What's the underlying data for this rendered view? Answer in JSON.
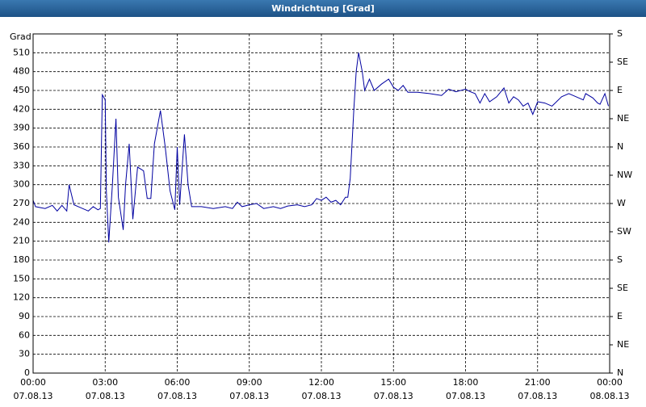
{
  "chart_data": {
    "type": "line",
    "title": "Windrichtung [Grad]",
    "y_label": "Grad",
    "color": "#0000a0",
    "grid": true,
    "xlim": [
      0,
      24
    ],
    "xticks": [
      {
        "value": 0,
        "label": "00:00",
        "date": "07.08.13"
      },
      {
        "value": 3,
        "label": "03:00",
        "date": "07.08.13"
      },
      {
        "value": 6,
        "label": "06:00",
        "date": "07.08.13"
      },
      {
        "value": 9,
        "label": "09:00",
        "date": "07.08.13"
      },
      {
        "value": 12,
        "label": "12:00",
        "date": "07.08.13"
      },
      {
        "value": 15,
        "label": "15:00",
        "date": "07.08.13"
      },
      {
        "value": 18,
        "label": "18:00",
        "date": "07.08.13"
      },
      {
        "value": 21,
        "label": "21:00",
        "date": "07.08.13"
      },
      {
        "value": 24,
        "label": "00:00",
        "date": "08.08.13"
      }
    ],
    "ylim": [
      0,
      540
    ],
    "yticks": [
      0,
      30,
      60,
      90,
      120,
      150,
      180,
      210,
      240,
      270,
      300,
      330,
      360,
      390,
      420,
      450,
      480,
      510
    ],
    "y2lim": [
      0,
      540
    ],
    "y2ticks": [
      {
        "value": 0,
        "label": "N"
      },
      {
        "value": 45,
        "label": "NE"
      },
      {
        "value": 90,
        "label": "E"
      },
      {
        "value": 135,
        "label": "SE"
      },
      {
        "value": 180,
        "label": "S"
      },
      {
        "value": 225,
        "label": "SW"
      },
      {
        "value": 270,
        "label": "W"
      },
      {
        "value": 315,
        "label": "NW"
      },
      {
        "value": 360,
        "label": "N"
      },
      {
        "value": 405,
        "label": "NE"
      },
      {
        "value": 450,
        "label": "E"
      },
      {
        "value": 495,
        "label": "SE"
      },
      {
        "value": 540,
        "label": "S"
      }
    ],
    "x": [
      0,
      0.1,
      0.5,
      0.8,
      1.0,
      1.2,
      1.4,
      1.5,
      1.7,
      2.0,
      2.3,
      2.5,
      2.7,
      2.8,
      2.88,
      3.0,
      3.05,
      3.15,
      3.3,
      3.45,
      3.55,
      3.75,
      3.85,
      4.0,
      4.15,
      4.35,
      4.6,
      4.75,
      4.9,
      5.05,
      5.3,
      5.5,
      5.7,
      5.9,
      6.0,
      6.1,
      6.3,
      6.45,
      6.6,
      7.0,
      7.5,
      8.0,
      8.3,
      8.5,
      8.7,
      9.0,
      9.3,
      9.6,
      10.0,
      10.3,
      10.6,
      11.0,
      11.3,
      11.6,
      11.8,
      12.0,
      12.2,
      12.4,
      12.6,
      12.8,
      13.0,
      13.1,
      13.2,
      13.35,
      13.45,
      13.55,
      13.7,
      13.8,
      14.0,
      14.2,
      14.5,
      14.8,
      15.0,
      15.2,
      15.4,
      15.6,
      16.0,
      16.5,
      17.0,
      17.3,
      17.6,
      18.0,
      18.2,
      18.4,
      18.6,
      18.8,
      19.0,
      19.3,
      19.6,
      19.8,
      20.0,
      20.2,
      20.4,
      20.6,
      20.8,
      21.0,
      21.3,
      21.6,
      22.0,
      22.3,
      22.6,
      22.9,
      23.0,
      23.3,
      23.5,
      23.6,
      23.8,
      23.95
    ],
    "values": [
      275,
      265,
      262,
      267,
      258,
      267,
      258,
      300,
      268,
      263,
      258,
      265,
      260,
      262,
      443,
      435,
      290,
      208,
      300,
      405,
      280,
      228,
      300,
      365,
      245,
      328,
      322,
      278,
      278,
      365,
      418,
      360,
      290,
      260,
      360,
      268,
      380,
      300,
      265,
      265,
      262,
      265,
      262,
      272,
      265,
      268,
      270,
      262,
      265,
      262,
      266,
      268,
      265,
      268,
      278,
      275,
      280,
      272,
      275,
      268,
      280,
      280,
      310,
      420,
      480,
      510,
      480,
      450,
      468,
      450,
      460,
      468,
      455,
      450,
      458,
      447,
      447,
      445,
      442,
      452,
      448,
      452,
      448,
      445,
      430,
      445,
      432,
      440,
      454,
      430,
      440,
      435,
      425,
      430,
      412,
      432,
      430,
      425,
      440,
      445,
      440,
      435,
      445,
      438,
      430,
      428,
      445,
      425
    ]
  }
}
